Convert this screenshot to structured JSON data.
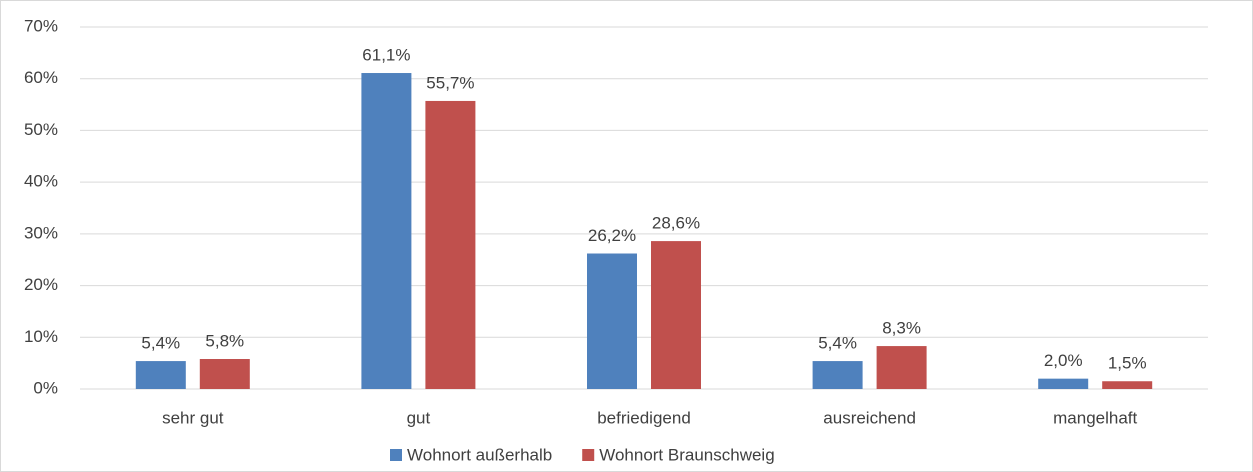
{
  "chart_data": {
    "type": "bar",
    "categories": [
      "sehr gut",
      "gut",
      "befriedigend",
      "ausreichend",
      "mangelhaft"
    ],
    "series": [
      {
        "name": "Wohnort außerhalb",
        "color": "#4f81bd",
        "values": [
          5.4,
          61.1,
          26.2,
          5.4,
          2.0
        ],
        "value_labels": [
          "5,4%",
          "61,1%",
          "26,2%",
          "5,4%",
          "2,0%"
        ]
      },
      {
        "name": "Wohnort Braunschweig",
        "color": "#c0504d",
        "values": [
          5.8,
          55.7,
          28.6,
          8.3,
          1.5
        ],
        "value_labels": [
          "5,8%",
          "55,7%",
          "28,6%",
          "8,3%",
          "1,5%"
        ]
      }
    ],
    "ylim": [
      0,
      70
    ],
    "yticks": [
      {
        "value": 0,
        "label": "0%"
      },
      {
        "value": 10,
        "label": "10%"
      },
      {
        "value": 20,
        "label": "20%"
      },
      {
        "value": 30,
        "label": "30%"
      },
      {
        "value": 40,
        "label": "40%"
      },
      {
        "value": 50,
        "label": "50%"
      },
      {
        "value": 60,
        "label": "60%"
      },
      {
        "value": 70,
        "label": "70%"
      }
    ],
    "grid": true,
    "legend": "bottom"
  }
}
